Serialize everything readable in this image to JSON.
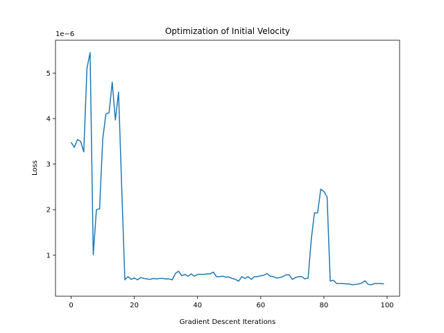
{
  "chart_data": {
    "type": "line",
    "title": "Optimization of Initial Velocity",
    "xlabel": "Gradient Descent Iterations",
    "ylabel": "Loss",
    "y_multiplier_label": "1e−6",
    "xlim": [
      -4.95,
      103.95
    ],
    "ylim": [
      0.1,
      5.72
    ],
    "xticks": [
      0,
      20,
      40,
      60,
      80,
      100
    ],
    "yticks": [
      1,
      2,
      3,
      4,
      5
    ],
    "grid": false,
    "line_color": "#1f77b4",
    "series": [
      {
        "x": [
          0,
          1,
          2,
          3,
          4,
          5,
          6,
          7,
          8,
          9,
          10,
          11,
          12,
          13,
          14,
          15,
          16,
          17,
          18,
          19,
          20,
          21,
          22,
          23,
          24,
          25,
          26,
          27,
          28,
          29,
          30,
          31,
          32,
          33,
          34,
          35,
          36,
          37,
          38,
          39,
          40,
          41,
          42,
          43,
          44,
          45,
          46,
          47,
          48,
          49,
          50,
          51,
          52,
          53,
          54,
          55,
          56,
          57,
          58,
          59,
          60,
          61,
          62,
          63,
          64,
          65,
          66,
          67,
          68,
          69,
          70,
          71,
          72,
          73,
          74,
          75,
          76,
          77,
          78,
          79,
          80,
          81,
          82,
          83,
          84,
          85,
          86,
          87,
          88,
          89,
          90,
          91,
          92,
          93,
          94,
          95,
          96,
          97,
          98,
          99
        ],
        "values": [
          3.48,
          3.37,
          3.54,
          3.5,
          3.27,
          5.1,
          5.45,
          1.01,
          2.0,
          2.02,
          3.55,
          4.1,
          4.13,
          4.8,
          3.97,
          4.58,
          2.5,
          0.46,
          0.53,
          0.47,
          0.5,
          0.46,
          0.51,
          0.49,
          0.48,
          0.47,
          0.49,
          0.48,
          0.49,
          0.49,
          0.48,
          0.48,
          0.46,
          0.6,
          0.65,
          0.55,
          0.58,
          0.54,
          0.59,
          0.54,
          0.58,
          0.58,
          0.58,
          0.59,
          0.59,
          0.63,
          0.53,
          0.53,
          0.54,
          0.52,
          0.52,
          0.49,
          0.47,
          0.43,
          0.53,
          0.49,
          0.53,
          0.47,
          0.53,
          0.53,
          0.55,
          0.56,
          0.6,
          0.54,
          0.53,
          0.5,
          0.51,
          0.53,
          0.57,
          0.57,
          0.47,
          0.51,
          0.53,
          0.53,
          0.48,
          0.5,
          1.35,
          1.93,
          1.93,
          2.45,
          2.4,
          2.28,
          0.43,
          0.45,
          0.38,
          0.38,
          0.38,
          0.37,
          0.37,
          0.35,
          0.36,
          0.37,
          0.39,
          0.44,
          0.36,
          0.35,
          0.38,
          0.38,
          0.38,
          0.37
        ]
      }
    ]
  }
}
